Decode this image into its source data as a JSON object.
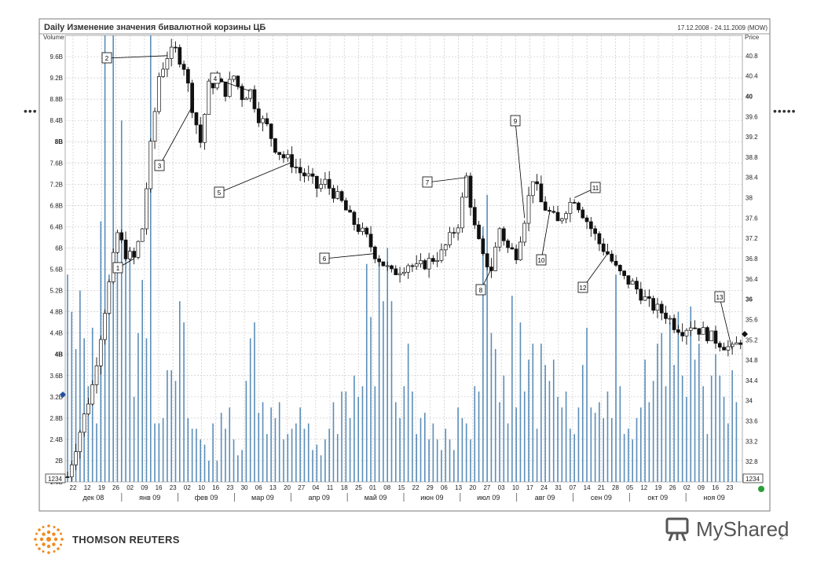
{
  "chart_data": {
    "type": "candlestick",
    "title": "Daily Изменение значения бивалютной корзины ЦБ",
    "date_range": "17.12.2008 - 24.11.2009 (MOW)",
    "left_axis_label": "Volume",
    "right_axis_label": "Price",
    "volume_ticks": [
      "1.6B",
      "2B",
      "2.4B",
      "2.8B",
      "3.2B",
      "3.6B",
      "4B",
      "4.4B",
      "4.8B",
      "5.2B",
      "5.6B",
      "6B",
      "6.4B",
      "6.8B",
      "7.2B",
      "7.6B",
      "8B",
      "8.4B",
      "8.8B",
      "9.2B",
      "9.6B"
    ],
    "volume_range": [
      1.6,
      10.0
    ],
    "price_ticks": [
      "32.8",
      "33.2",
      "33.6",
      "34",
      "34.4",
      "34.8",
      "35.2",
      "35.6",
      "36",
      "36.4",
      "36.8",
      "37.2",
      "37.6",
      "38",
      "38.4",
      "38.8",
      "39.2",
      "39.6",
      "40",
      "40.4",
      "40.8"
    ],
    "price_range": [
      32.4,
      41.2
    ],
    "day_ticks": [
      "22",
      "12",
      "19",
      "26",
      "02",
      "09",
      "16",
      "23",
      "02",
      "10",
      "16",
      "23",
      "30",
      "06",
      "13",
      "20",
      "27",
      "04",
      "11",
      "18",
      "25",
      "01",
      "08",
      "15",
      "22",
      "29",
      "06",
      "13",
      "20",
      "27",
      "03",
      "10",
      "17",
      "24",
      "31",
      "07",
      "14",
      "21",
      "28",
      "05",
      "12",
      "19",
      "26",
      "02",
      "09",
      "16",
      "23"
    ],
    "month_labels": [
      "дек 08",
      "янв 09",
      "фев 09",
      "мар 09",
      "апр 09",
      "май 09",
      "июн 09",
      "июл 09",
      "авг 09",
      "сен 09",
      "окт 09",
      "ноя 09"
    ],
    "price_key": [
      [
        0,
        32.5
      ],
      [
        3,
        33.4
      ],
      [
        6,
        34.3
      ],
      [
        9,
        35.8
      ],
      [
        12,
        37.3
      ],
      [
        14,
        36.9
      ],
      [
        16,
        36.8
      ],
      [
        18,
        37.4
      ],
      [
        20,
        39.0
      ],
      [
        22,
        40.4
      ],
      [
        24,
        40.8
      ],
      [
        26,
        40.9
      ],
      [
        28,
        40.6
      ],
      [
        30,
        39.8
      ],
      [
        32,
        39.1
      ],
      [
        34,
        40.2
      ],
      [
        36,
        40.3
      ],
      [
        38,
        40.1
      ],
      [
        40,
        40.4
      ],
      [
        42,
        40.0
      ],
      [
        44,
        40.1
      ],
      [
        46,
        39.6
      ],
      [
        48,
        39.4
      ],
      [
        50,
        39.0
      ],
      [
        52,
        38.8
      ],
      [
        54,
        38.7
      ],
      [
        56,
        38.5
      ],
      [
        58,
        38.4
      ],
      [
        60,
        38.2
      ],
      [
        62,
        38.3
      ],
      [
        64,
        38.1
      ],
      [
        66,
        37.9
      ],
      [
        68,
        37.6
      ],
      [
        70,
        37.4
      ],
      [
        72,
        37.2
      ],
      [
        74,
        36.9
      ],
      [
        76,
        36.7
      ],
      [
        78,
        36.5
      ],
      [
        80,
        36.6
      ],
      [
        82,
        36.7
      ],
      [
        84,
        36.6
      ],
      [
        86,
        36.7
      ],
      [
        88,
        36.8
      ],
      [
        90,
        36.9
      ],
      [
        92,
        37.2
      ],
      [
        94,
        37.5
      ],
      [
        96,
        38.4
      ],
      [
        98,
        37.4
      ],
      [
        100,
        36.8
      ],
      [
        102,
        36.6
      ],
      [
        104,
        37.4
      ],
      [
        106,
        37.0
      ],
      [
        108,
        36.9
      ],
      [
        110,
        37.6
      ],
      [
        112,
        38.4
      ],
      [
        114,
        37.9
      ],
      [
        116,
        37.7
      ],
      [
        118,
        37.5
      ],
      [
        120,
        37.8
      ],
      [
        122,
        38.0
      ],
      [
        124,
        37.7
      ],
      [
        126,
        37.4
      ],
      [
        128,
        37.1
      ],
      [
        130,
        36.9
      ],
      [
        132,
        36.6
      ],
      [
        134,
        36.4
      ],
      [
        136,
        36.3
      ],
      [
        138,
        36.1
      ],
      [
        140,
        35.9
      ],
      [
        142,
        35.8
      ],
      [
        144,
        35.7
      ],
      [
        146,
        35.5
      ],
      [
        148,
        35.4
      ],
      [
        150,
        35.5
      ],
      [
        152,
        35.4
      ],
      [
        154,
        35.3
      ],
      [
        156,
        35.2
      ],
      [
        158,
        35.1
      ],
      [
        160,
        35.0
      ],
      [
        162,
        35.2
      ]
    ],
    "volume_values": [
      5.5,
      4.8,
      4.1,
      5.2,
      4.3,
      3.4,
      4.5,
      2.7,
      6.5,
      10,
      5.5,
      10,
      6.2,
      8.4,
      5.8,
      6.0,
      3.2,
      4.4,
      5.4,
      4.3,
      10,
      2.7,
      2.7,
      2.8,
      3.7,
      3.7,
      3.5,
      5.0,
      4.6,
      2.8,
      2.6,
      2.6,
      2.4,
      2.3,
      2.0,
      2.7,
      2.0,
      2.9,
      2.6,
      3.0,
      2.4,
      2.1,
      2.2,
      3.5,
      4.3,
      4.6,
      2.9,
      3.1,
      2.5,
      3.0,
      2.8,
      3.1,
      2.4,
      2.5,
      2.6,
      2.7,
      3.0,
      2.6,
      2.7,
      2.2,
      2.3,
      2.1,
      2.4,
      2.6,
      3.1,
      2.5,
      3.3,
      3.3,
      2.8,
      3.6,
      3.2,
      3.4,
      5.7,
      4.7,
      3.4,
      5.8,
      5.0,
      6.0,
      5.0,
      3.1,
      2.8,
      3.4,
      4.2,
      3.3,
      2.5,
      2.8,
      2.9,
      2.4,
      2.7,
      2.4,
      2.2,
      2.6,
      2.4,
      2.2,
      3.0,
      2.8,
      2.7,
      2.4,
      3.4,
      3.3,
      6.4,
      7.0,
      4.4,
      4.1,
      3.1,
      3.6,
      2.7,
      5.1,
      3.0,
      4.6,
      3.3,
      3.9,
      4.2,
      2.6,
      4.2,
      3.8,
      3.5,
      3.9,
      3.2,
      3.0,
      3.3,
      2.6,
      2.5,
      3.0,
      3.8,
      4.5,
      3.0,
      2.9,
      3.1,
      2.8,
      3.3,
      2.8,
      5.5,
      3.4,
      2.5,
      2.6,
      2.4,
      2.8,
      3.0,
      3.9,
      3.1,
      3.5,
      4.2,
      4.4,
      3.4,
      4.6,
      3.8,
      4.8,
      3.6,
      3.2,
      4.9,
      3.9,
      4.2,
      3.4,
      2.5,
      3.6,
      4.0,
      3.6,
      3.2,
      2.7,
      3.7,
      3.1
    ]
  },
  "annotations": [
    "1",
    "2",
    "3",
    "4",
    "5",
    "6",
    "7",
    "8",
    "9",
    "10",
    "11",
    "12",
    "13"
  ],
  "tags": {
    "left_value": "1234",
    "right_value": "1234"
  },
  "footer": {
    "brand_left": "THOMSON REUTERS",
    "brand_right": "MyShared",
    "page_number": "2"
  },
  "colors": {
    "volume": "#5b8db8",
    "candle": "#111111",
    "grid": "#c8c8c8",
    "frame": "#7a7a7a",
    "accent": "#2a9d3a"
  }
}
